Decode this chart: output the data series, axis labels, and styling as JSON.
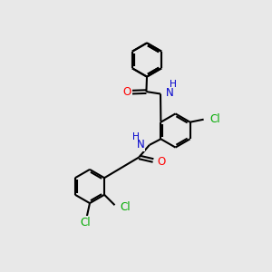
{
  "bg_color": "#e8e8e8",
  "bond_color": "#000000",
  "bond_width": 1.5,
  "dbo": 0.08,
  "atom_colors": {
    "O": "#ff0000",
    "N": "#0000cc",
    "Cl": "#00aa00",
    "H": "#0000cc"
  },
  "fs": 8.5,
  "ring_r": 0.62
}
